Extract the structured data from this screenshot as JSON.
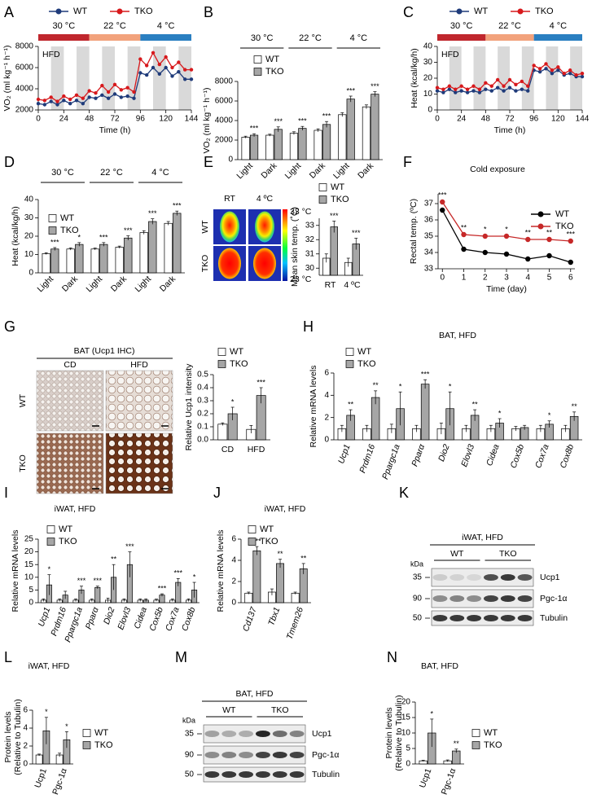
{
  "chart_data": [
    {
      "panel": "A",
      "type": "line",
      "ylabel": "VO₂ (ml kg⁻¹ h⁻¹)",
      "xlabel": "Time (h)",
      "annotation": "HFD",
      "x": [
        0,
        6,
        12,
        18,
        24,
        30,
        36,
        42,
        48,
        54,
        60,
        66,
        72,
        78,
        84,
        90,
        96,
        102,
        108,
        114,
        120,
        126,
        132,
        138,
        144
      ],
      "xlim": [
        0,
        144
      ],
      "xticks": [
        0,
        24,
        48,
        72,
        96,
        120,
        144
      ],
      "ylim": [
        2000,
        8000
      ],
      "yticks": [
        2000,
        4000,
        6000,
        8000
      ],
      "shaded": [
        [
          12,
          24
        ],
        [
          36,
          48
        ],
        [
          60,
          72
        ],
        [
          84,
          96
        ],
        [
          108,
          120
        ],
        [
          132,
          144
        ]
      ],
      "conditions": [
        {
          "label": "30 °C",
          "start": 0,
          "end": 48,
          "color": "#c0272d"
        },
        {
          "label": "22 °C",
          "start": 48,
          "end": 96,
          "color": "#f2a27c"
        },
        {
          "label": "4 °C",
          "start": 96,
          "end": 144,
          "color": "#2a7fc1"
        }
      ],
      "series": [
        {
          "name": "WT",
          "color": "#1f3b7a",
          "values": [
            2600,
            2500,
            2800,
            2500,
            2900,
            2600,
            2900,
            2600,
            3200,
            3100,
            3400,
            3100,
            3500,
            3200,
            3300,
            3100,
            5500,
            5300,
            6000,
            5400,
            6000,
            5200,
            5600,
            4900,
            4900
          ]
        },
        {
          "name": "TKO",
          "color": "#d7191c",
          "values": [
            3000,
            2900,
            3200,
            2800,
            3300,
            3000,
            3400,
            3100,
            3800,
            3600,
            4300,
            3700,
            4400,
            3900,
            4100,
            3700,
            6800,
            6200,
            7400,
            6300,
            7000,
            6000,
            6500,
            5800,
            5800
          ]
        }
      ]
    },
    {
      "panel": "B",
      "type": "bar",
      "ylabel": "VO₂ (ml kg⁻¹ h⁻¹)",
      "groups": [
        "30 °C",
        "22 °C",
        "4 °C"
      ],
      "categories": [
        "Light",
        "Dark",
        "Light",
        "Dark",
        "Light",
        "Dark"
      ],
      "ylim": [
        0,
        8000
      ],
      "yticks": [
        0,
        2000,
        4000,
        6000,
        8000
      ],
      "series": [
        {
          "name": "WT",
          "color": "#ffffff",
          "values": [
            2300,
            2500,
            2700,
            3000,
            4600,
            5400
          ],
          "errors": [
            100,
            100,
            150,
            150,
            200,
            200
          ]
        },
        {
          "name": "TKO",
          "color": "#a6a6a6",
          "values": [
            2500,
            3100,
            3200,
            3600,
            6200,
            6700
          ],
          "errors": [
            150,
            250,
            200,
            300,
            300,
            250
          ]
        }
      ],
      "significance": [
        "***",
        "***",
        "***",
        "***",
        "***",
        "***"
      ]
    },
    {
      "panel": "C",
      "type": "line",
      "ylabel": "Heat (kcal/kg/h)",
      "xlabel": "Time (h)",
      "annotation": "HFD",
      "x": [
        0,
        6,
        12,
        18,
        24,
        30,
        36,
        42,
        48,
        54,
        60,
        66,
        72,
        78,
        84,
        90,
        96,
        102,
        108,
        114,
        120,
        126,
        132,
        138,
        144
      ],
      "xlim": [
        0,
        144
      ],
      "xticks": [
        0,
        24,
        48,
        72,
        96,
        120,
        144
      ],
      "ylim": [
        0,
        40
      ],
      "yticks": [
        0,
        10,
        20,
        30,
        40
      ],
      "shaded": [
        [
          12,
          24
        ],
        [
          36,
          48
        ],
        [
          60,
          72
        ],
        [
          84,
          96
        ],
        [
          108,
          120
        ],
        [
          132,
          144
        ]
      ],
      "conditions": [
        {
          "label": "30 °C",
          "start": 0,
          "end": 48,
          "color": "#c0272d"
        },
        {
          "label": "22 °C",
          "start": 48,
          "end": 96,
          "color": "#f2a27c"
        },
        {
          "label": "4 °C",
          "start": 96,
          "end": 144,
          "color": "#2a7fc1"
        }
      ],
      "series": [
        {
          "name": "WT",
          "color": "#1f3b7a",
          "values": [
            12,
            11,
            13,
            11,
            12,
            11,
            12,
            11,
            13,
            12,
            14,
            12,
            14,
            12,
            13,
            12,
            25,
            24,
            26,
            23,
            25,
            22,
            23,
            21,
            21
          ]
        },
        {
          "name": "TKO",
          "color": "#d7191c",
          "values": [
            14,
            13,
            15,
            13,
            15,
            13,
            15,
            13,
            17,
            15,
            19,
            15,
            19,
            16,
            18,
            15,
            28,
            26,
            29,
            25,
            27,
            23,
            25,
            22,
            23
          ]
        }
      ]
    },
    {
      "panel": "D",
      "type": "bar",
      "ylabel": "Heat (kcal/kg/h)",
      "groups": [
        "30 °C",
        "22 °C",
        "4 °C"
      ],
      "categories": [
        "Light",
        "Dark",
        "Light",
        "Dark",
        "Light",
        "Dark"
      ],
      "ylim": [
        0,
        40
      ],
      "yticks": [
        0,
        10,
        20,
        30,
        40
      ],
      "series": [
        {
          "name": "WT",
          "color": "#ffffff",
          "values": [
            10.5,
            13,
            13,
            14,
            22,
            27
          ],
          "errors": [
            0.5,
            0.6,
            0.5,
            0.6,
            1,
            1
          ]
        },
        {
          "name": "TKO",
          "color": "#a6a6a6",
          "values": [
            13,
            15.5,
            15.5,
            19,
            28,
            32.5
          ],
          "errors": [
            0.8,
            1,
            1,
            1.2,
            1.5,
            1.2
          ]
        }
      ],
      "significance": [
        "***",
        "*",
        "***",
        "***",
        "***",
        "***"
      ]
    },
    {
      "panel": "E",
      "type": "bar",
      "ylabel": "Mean skin temp. (˚C)",
      "categories": [
        "RT",
        "4 ºC"
      ],
      "ylim": [
        29.5,
        33.5
      ],
      "yticks": [
        30,
        31,
        32,
        33
      ],
      "series": [
        {
          "name": "WT",
          "color": "#ffffff",
          "values": [
            30.7,
            30.4
          ],
          "errors": [
            0.3,
            0.3
          ]
        },
        {
          "name": "TKO",
          "color": "#a6a6a6",
          "values": [
            32.9,
            31.7
          ],
          "errors": [
            0.4,
            0.4
          ]
        }
      ],
      "significance": [
        "***",
        "***"
      ]
    },
    {
      "panel": "F",
      "type": "line",
      "title": "Cold exposure",
      "ylabel": "Rectal temp. (ºC)",
      "xlabel": "Time (day)",
      "x": [
        0,
        1,
        2,
        3,
        4,
        5,
        6
      ],
      "xlim": [
        -0.2,
        6.2
      ],
      "xticks": [
        0,
        1,
        2,
        3,
        4,
        5,
        6
      ],
      "ylim": [
        33,
        37.6
      ],
      "yticks": [
        33,
        34,
        35,
        36,
        37
      ],
      "series": [
        {
          "name": "WT",
          "color": "#000000",
          "values": [
            36.6,
            34.2,
            34.0,
            33.9,
            33.6,
            33.8,
            33.4
          ]
        },
        {
          "name": "TKO",
          "color": "#c62828",
          "values": [
            37.1,
            35.1,
            35.0,
            35.0,
            34.8,
            34.8,
            34.7
          ]
        }
      ],
      "significance": [
        "***",
        "**",
        "*",
        "*",
        "**",
        "**",
        "***"
      ]
    },
    {
      "panel": "G",
      "type": "bar",
      "ylabel": "Relative Ucp1 intensity",
      "categories": [
        "CD",
        "HFD"
      ],
      "ylim": [
        0,
        0.5
      ],
      "yticks": [
        {
          "value": 0,
          "label": "0.0"
        },
        0.1,
        0.2,
        0.3,
        0.4,
        0.5
      ],
      "series": [
        {
          "name": "WT",
          "color": "#ffffff",
          "values": [
            0.12,
            0.08
          ],
          "errors": [
            0.01,
            0.03
          ]
        },
        {
          "name": "TKO",
          "color": "#a6a6a6",
          "values": [
            0.2,
            0.34
          ],
          "errors": [
            0.05,
            0.06
          ]
        }
      ],
      "significance": [
        "*",
        "***"
      ]
    },
    {
      "panel": "H",
      "type": "bar",
      "title": "BAT, HFD",
      "ylabel": "Relative mRNA levels",
      "italic_categories": true,
      "categories": [
        "Ucp1",
        "Prdm16",
        "Ppargc1a",
        "Pparα",
        "Dio2",
        "Elovl3",
        "Cidea",
        "Cox5b",
        "Cox7a",
        "Cox8b"
      ],
      "ylim": [
        0,
        6
      ],
      "yticks": [
        0,
        2,
        4,
        6
      ],
      "series": [
        {
          "name": "WT",
          "color": "#ffffff",
          "values": [
            1,
            1,
            1,
            1,
            1,
            1,
            1,
            1,
            1,
            1
          ],
          "errors": [
            0.3,
            0.3,
            0.4,
            0.3,
            0.5,
            0.3,
            0.3,
            0.2,
            0.3,
            0.3
          ]
        },
        {
          "name": "TKO",
          "color": "#a6a6a6",
          "values": [
            2.2,
            3.8,
            2.8,
            5,
            2.8,
            2.2,
            1.5,
            1.1,
            1.4,
            2.1
          ],
          "errors": [
            0.5,
            0.6,
            1.5,
            0.4,
            1.5,
            0.5,
            0.4,
            0.2,
            0.3,
            0.4
          ]
        }
      ],
      "significance": [
        "**",
        "**",
        "*",
        "***",
        "*",
        "**",
        "*",
        null,
        "*",
        "**"
      ]
    },
    {
      "panel": "I",
      "type": "bar",
      "title": "iWAT, HFD",
      "ylabel": "Relative mRNA levels",
      "italic_categories": true,
      "categories": [
        "Ucp1",
        "Prdm16",
        "Ppargc1a",
        "Pparα",
        "Dio2",
        "Elovl3",
        "Cidea",
        "Cox5b",
        "Cox7a",
        "Cox8b"
      ],
      "ylim": [
        0,
        25
      ],
      "yticks": [
        0,
        5,
        10,
        15,
        20,
        25
      ],
      "series": [
        {
          "name": "WT",
          "color": "#ffffff",
          "values": [
            1,
            1,
            1,
            1,
            1,
            1,
            1,
            1,
            1,
            1
          ],
          "errors": [
            0.5,
            0.5,
            0.5,
            0.5,
            0.8,
            0.5,
            0.5,
            0.4,
            0.5,
            0.5
          ]
        },
        {
          "name": "TKO",
          "color": "#a6a6a6",
          "values": [
            7,
            3,
            5,
            6,
            10,
            15,
            1,
            3,
            8,
            5
          ],
          "errors": [
            4,
            1.5,
            1.5,
            0.5,
            5,
            5,
            0.5,
            0.5,
            1.5,
            3
          ]
        }
      ],
      "significance": [
        "*",
        null,
        "***",
        "***",
        "**",
        "***",
        null,
        "***",
        "***",
        "*"
      ]
    },
    {
      "panel": "J",
      "type": "bar",
      "title": "iWAT, HFD",
      "ylabel": "Relative mRNA levels",
      "italic_categories": true,
      "categories": [
        "Cd137",
        "Tbx1",
        "Tmem26"
      ],
      "ylim": [
        0,
        6
      ],
      "yticks": [
        0,
        2,
        4,
        6
      ],
      "series": [
        {
          "name": "WT",
          "color": "#ffffff",
          "values": [
            0.9,
            1.0,
            0.9
          ],
          "errors": [
            0.1,
            0.3,
            0.1
          ]
        },
        {
          "name": "TKO",
          "color": "#a6a6a6",
          "values": [
            4.9,
            3.7,
            3.2
          ],
          "errors": [
            0.4,
            0.4,
            0.5
          ]
        }
      ],
      "significance": [
        "***",
        "**",
        "**"
      ]
    },
    {
      "panel": "L",
      "type": "bar",
      "title": "iWAT, HFD",
      "ylabel": [
        "Protein levels",
        "(Relative to Tubulin)"
      ],
      "categories": [
        "Ucp1",
        "Pgc-1α"
      ],
      "ylim": [
        0,
        6
      ],
      "yticks": [
        0,
        2,
        4,
        6
      ],
      "series": [
        {
          "name": "WT",
          "color": "#ffffff",
          "values": [
            1,
            1
          ],
          "errors": [
            0.1,
            0.2
          ]
        },
        {
          "name": "TKO",
          "color": "#a6a6a6",
          "values": [
            3.7,
            2.7
          ],
          "errors": [
            1.5,
            0.9
          ]
        }
      ],
      "significance": [
        "*",
        "*"
      ]
    },
    {
      "panel": "N",
      "type": "bar",
      "title": "BAT, HFD",
      "ylabel": [
        "Protein levels",
        "(Relative to Tubulin)"
      ],
      "categories": [
        "Ucp1",
        "Pgc-1α"
      ],
      "ylim": [
        0,
        20
      ],
      "yticks": [
        0,
        5,
        10,
        15,
        20
      ],
      "series": [
        {
          "name": "WT",
          "color": "#ffffff",
          "values": [
            1,
            1
          ],
          "errors": [
            0.2,
            0.3
          ]
        },
        {
          "name": "TKO",
          "color": "#a6a6a6",
          "values": [
            10,
            4.2
          ],
          "errors": [
            4.5,
            0.6
          ]
        }
      ],
      "significance": [
        "*",
        "**"
      ]
    }
  ],
  "figures": [
    {
      "kind": "thermal",
      "column_labels": [
        "RT",
        "4 ºC"
      ],
      "row_labels": [
        "WT",
        "TKO"
      ],
      "scale_max": "33 °C",
      "scale_min": "23 °C"
    },
    {
      "kind": "ihc",
      "title": "BAT (Ucp1 IHC)",
      "column_labels": [
        "CD",
        "HFD"
      ],
      "row_labels": [
        "WT",
        "TKO"
      ]
    },
    {
      "kind": "blot",
      "panel": "K",
      "title": "iWAT, HFD",
      "groups": [
        "WT",
        "TKO"
      ],
      "unit": "kDa",
      "markers": [
        "35",
        "90",
        "50"
      ],
      "bands": [
        "Ucp1",
        "Pgc-1α",
        "Tubulin"
      ]
    },
    {
      "kind": "blot",
      "panel": "M",
      "title": "BAT, HFD",
      "groups": [
        "WT",
        "TKO"
      ],
      "unit": "kDa",
      "markers": [
        "35",
        "90",
        "50"
      ],
      "bands": [
        "Ucp1",
        "Pgc-1α",
        "Tubulin"
      ]
    }
  ]
}
